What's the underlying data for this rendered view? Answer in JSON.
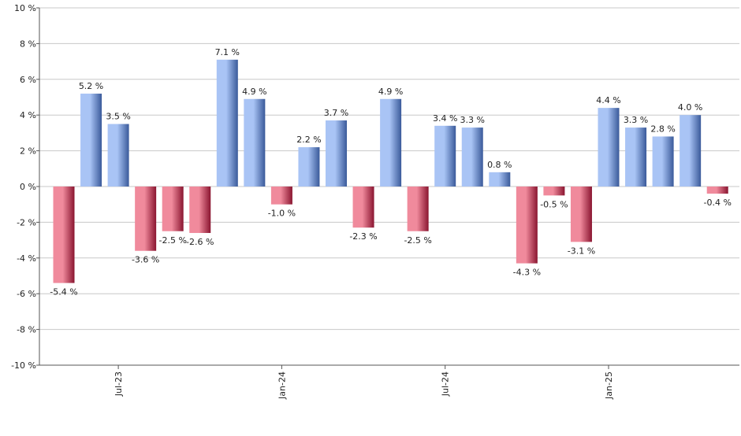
{
  "chart_data": {
    "type": "bar",
    "title": "",
    "xlabel": "",
    "ylabel": "",
    "ylim": [
      -10,
      10
    ],
    "y_ticks": [
      -10,
      -8,
      -6,
      -4,
      -2,
      0,
      2,
      4,
      6,
      8,
      10
    ],
    "y_tick_labels": [
      "-10 %",
      "-8 %",
      "-6 %",
      "-4 %",
      "-2 %",
      "0 %",
      "2 %",
      "4 %",
      "6 %",
      "8 %",
      "10 %"
    ],
    "x_tick_labels": [
      {
        "label": "Jul-23",
        "index": 2
      },
      {
        "label": "Jan-24",
        "index": 8
      },
      {
        "label": "Jul-24",
        "index": 14
      },
      {
        "label": "Jan-25",
        "index": 20
      }
    ],
    "values": [
      -5.4,
      5.2,
      3.5,
      -3.6,
      -2.5,
      -2.6,
      7.1,
      4.9,
      -1.0,
      2.2,
      3.7,
      -2.3,
      4.9,
      -2.5,
      3.4,
      3.3,
      0.8,
      -4.3,
      -0.5,
      -3.1,
      4.4,
      3.3,
      2.8,
      4.0,
      -0.4
    ],
    "value_labels": [
      "-5.4 %",
      "5.2 %",
      "3.5 %",
      "-3.6 %",
      "-2.5 %",
      "-2.6 %",
      "7.1 %",
      "4.9 %",
      "-1.0 %",
      "2.2 %",
      "3.7 %",
      "-2.3 %",
      "4.9 %",
      "-2.5 %",
      "3.4 %",
      "3.3 %",
      "0.8 %",
      "-4.3 %",
      "-0.5 %",
      "-3.1 %",
      "4.4 %",
      "3.3 %",
      "2.8 %",
      "4.0 %",
      "-0.4 %"
    ],
    "grid": true,
    "colors": {
      "positive_light": "#a9c4f5",
      "positive_dark": "#3a5a9a",
      "negative_light": "#f08a9c",
      "negative_dark": "#8a1530",
      "grid": "#c8c8c8",
      "axis": "#555555"
    }
  }
}
